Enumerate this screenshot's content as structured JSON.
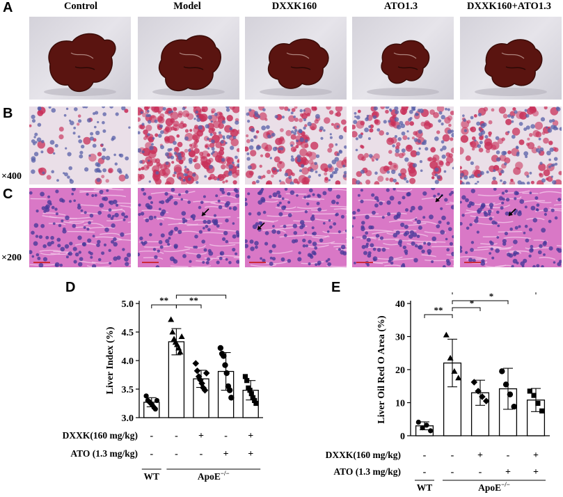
{
  "panel_letters": [
    "A",
    "B",
    "C",
    "D",
    "E"
  ],
  "groups": [
    "Control",
    "Model",
    "DXXK160",
    "ATO1.3",
    "DXXK160+ATO1.3"
  ],
  "magnifications": {
    "B": "×400",
    "C": "×200"
  },
  "colors": {
    "liver": "#5a1410",
    "oil_red": "#c8305a",
    "nuclei": "#5860a8",
    "he_pink": "#d978c6"
  },
  "chart_data": [
    {
      "type": "bar",
      "panel": "D",
      "ylabel": "Liver Index (%)",
      "ylim": [
        3.0,
        5.0
      ],
      "yticks": [
        "3.0",
        "3.5",
        "4.0",
        "4.5",
        "5.0"
      ],
      "categories": [
        "WT",
        "ApoE−/−",
        "ApoE−/− + DXXK",
        "ApoE−/− + ATO",
        "ApoE−/− + DXXK + ATO"
      ],
      "values": [
        3.27,
        4.33,
        3.68,
        3.81,
        3.48
      ],
      "errors": [
        0.08,
        0.23,
        0.15,
        0.33,
        0.17
      ],
      "points": [
        [
          3.38,
          3.3,
          3.28,
          3.25,
          3.22,
          3.18,
          3.15,
          3.3
        ],
        [
          4.72,
          4.5,
          4.38,
          4.32,
          4.28,
          4.22,
          4.15,
          4.42
        ],
        [
          3.95,
          3.82,
          3.72,
          3.66,
          3.6,
          3.52,
          3.48,
          3.78
        ],
        [
          4.22,
          4.12,
          4.08,
          3.92,
          3.78,
          3.55,
          3.48,
          3.35
        ],
        [
          3.72,
          3.65,
          3.52,
          3.48,
          3.42,
          3.35,
          3.3,
          3.25
        ]
      ],
      "markers": [
        "circle",
        "triangle",
        "diamond",
        "hexagon",
        "square"
      ],
      "significance": [
        {
          "from": 0,
          "to": 1,
          "label": "**"
        },
        {
          "from": 1,
          "to": 2,
          "label": "**"
        },
        {
          "from": 1,
          "to": 3,
          "label": "*"
        },
        {
          "from": 1,
          "to": 4,
          "label": "**"
        }
      ],
      "treatment_rows": [
        {
          "label": "DXXK(160 mg/kg)",
          "values": [
            "-",
            "-",
            "+",
            "-",
            "+"
          ]
        },
        {
          "label": "ATO (1.3 mg/kg)",
          "values": [
            "-",
            "-",
            "-",
            "+",
            "+"
          ]
        }
      ],
      "group_labels": {
        "wt": "WT",
        "apoe": "ApoE",
        "apoe_sup": "−/−"
      }
    },
    {
      "type": "bar",
      "panel": "E",
      "ylabel": "Liver Oil Red O Area (%)",
      "ylim": [
        0,
        40
      ],
      "yticks": [
        "0",
        "10",
        "20",
        "30",
        "40"
      ],
      "categories": [
        "WT",
        "ApoE−/−",
        "ApoE−/− + DXXK",
        "ApoE−/− + ATO",
        "ApoE−/− + DXXK + ATO"
      ],
      "values": [
        3.0,
        22.0,
        13.0,
        14.2,
        10.8
      ],
      "errors": [
        1.2,
        7.2,
        3.8,
        6.2,
        3.5
      ],
      "points": [
        [
          4.1,
          2.4,
          3.2,
          1.5
        ],
        [
          30.5,
          23.5,
          19.5,
          17.5
        ],
        [
          16.2,
          13.5,
          11.8,
          10.5
        ],
        [
          19.5,
          15.5,
          12.5,
          8.8
        ],
        [
          13.5,
          12.2,
          9.8,
          7.5
        ]
      ],
      "markers": [
        "circle",
        "triangle",
        "diamond",
        "hexagon",
        "square"
      ],
      "significance": [
        {
          "from": 0,
          "to": 1,
          "label": "**"
        },
        {
          "from": 1,
          "to": 2,
          "label": "*"
        },
        {
          "from": 1,
          "to": 3,
          "label": "*"
        },
        {
          "from": 1,
          "to": 4,
          "label": "**"
        }
      ],
      "treatment_rows": [
        {
          "label": "DXXK(160 mg/kg)",
          "values": [
            "-",
            "-",
            "+",
            "-",
            "+"
          ]
        },
        {
          "label": "ATO (1.3 mg/kg)",
          "values": [
            "-",
            "-",
            "-",
            "+",
            "+"
          ]
        }
      ],
      "group_labels": {
        "wt": "WT",
        "apoe": "ApoE",
        "apoe_sup": "−/−"
      }
    }
  ]
}
